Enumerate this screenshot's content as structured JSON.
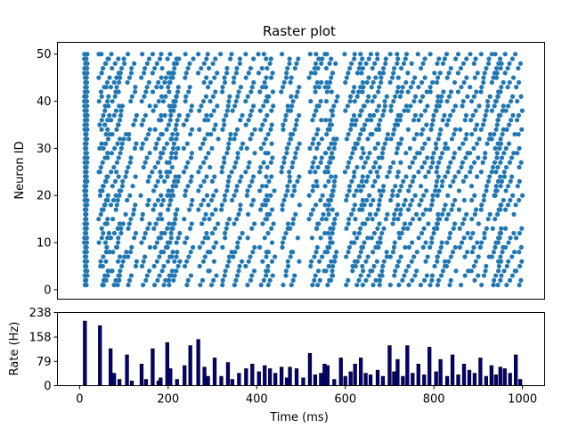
{
  "chart_data": [
    {
      "type": "scatter",
      "title": "Raster plot",
      "xlabel": "",
      "ylabel": "Neuron ID",
      "xlim": [
        -50,
        1050
      ],
      "ylim": [
        -2,
        52.5
      ],
      "yticks": [
        0,
        10,
        20,
        30,
        40,
        50
      ],
      "xticks_shown": false,
      "grid": false,
      "legend": "none",
      "marker_color": "#1f77b4",
      "neurons": {
        "min": 1,
        "max": 50
      },
      "global_spike_times_ms": [
        12,
        16,
        45,
        48,
        70,
        82,
        107,
        140,
        165,
        183,
        198,
        205,
        237,
        268,
        290,
        320,
        345,
        376,
        405,
        418,
        456,
        475,
        520,
        532,
        553,
        560,
        600,
        622,
        635,
        657,
        673,
        700,
        718,
        740,
        765,
        790,
        805,
        830,
        855,
        880,
        905,
        930,
        940,
        960,
        985
      ],
      "spike_times_ms_by_neuron": "each neuron fires at most once near each global spike time, with a neuron-dependent offset of up to about 25 ms"
    },
    {
      "type": "bar",
      "title": "",
      "xlabel": "Time (ms)",
      "ylabel": "Rate (Hz)",
      "xlim": [
        -50,
        1050
      ],
      "ylim": [
        0,
        238
      ],
      "xticks": [
        0,
        200,
        400,
        600,
        800,
        1000
      ],
      "yticks": [
        0,
        79,
        158,
        238
      ],
      "bar_color": "#00008b",
      "edge_color": "#000000",
      "bar_width_ms": 7,
      "x": [
        12,
        46,
        70,
        78,
        90,
        107,
        118,
        140,
        150,
        165,
        178,
        183,
        198,
        205,
        220,
        237,
        250,
        268,
        282,
        290,
        305,
        320,
        335,
        345,
        360,
        376,
        390,
        405,
        418,
        430,
        442,
        456,
        468,
        475,
        490,
        505,
        520,
        532,
        545,
        553,
        560,
        575,
        590,
        600,
        612,
        622,
        635,
        646,
        657,
        673,
        685,
        700,
        710,
        718,
        730,
        740,
        752,
        765,
        778,
        790,
        805,
        815,
        830,
        842,
        855,
        868,
        880,
        892,
        905,
        918,
        930,
        940,
        950,
        960,
        972,
        985,
        995
      ],
      "values": [
        210,
        195,
        120,
        40,
        20,
        100,
        15,
        70,
        20,
        120,
        15,
        25,
        140,
        55,
        20,
        65,
        130,
        150,
        60,
        30,
        90,
        30,
        75,
        20,
        40,
        55,
        70,
        45,
        65,
        55,
        40,
        60,
        25,
        60,
        55,
        25,
        105,
        35,
        40,
        70,
        65,
        20,
        90,
        30,
        45,
        70,
        90,
        40,
        35,
        50,
        30,
        130,
        45,
        85,
        30,
        130,
        40,
        70,
        35,
        125,
        45,
        85,
        30,
        100,
        35,
        70,
        50,
        40,
        90,
        30,
        65,
        35,
        60,
        55,
        40,
        100,
        20
      ]
    }
  ]
}
